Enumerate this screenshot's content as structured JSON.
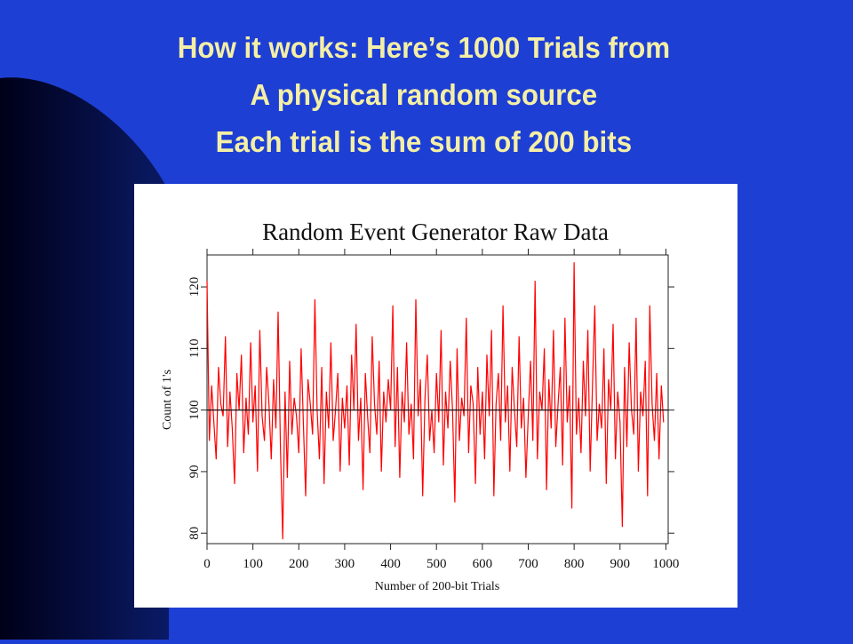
{
  "slide_title": [
    "How it works: Here’s 1000 Trials from",
    "A physical random source",
    "Each trial is the sum of 200 bits"
  ],
  "chart_data": {
    "type": "line",
    "title": "Random Event Generator Raw Data",
    "x_label": "Number of 200-bit Trials",
    "y_label": "Count of 1's",
    "xlim": [
      0,
      1005
    ],
    "ylim": [
      78.3,
      125.2
    ],
    "xticks": [
      0,
      100,
      200,
      300,
      400,
      500,
      600,
      700,
      800,
      900,
      1000
    ],
    "yticks": [
      80,
      90,
      100,
      110,
      120
    ],
    "reference_line": 100,
    "series": [
      {
        "color": "#ff0000",
        "x": [
          0,
          5,
          10,
          15,
          20,
          25,
          30,
          35,
          40,
          45,
          50,
          55,
          60,
          65,
          70,
          75,
          80,
          85,
          90,
          95,
          100,
          105,
          110,
          115,
          120,
          125,
          130,
          135,
          140,
          145,
          150,
          155,
          160,
          165,
          170,
          175,
          180,
          185,
          190,
          195,
          200,
          205,
          210,
          215,
          220,
          225,
          230,
          235,
          240,
          245,
          250,
          255,
          260,
          265,
          270,
          275,
          280,
          285,
          290,
          295,
          300,
          305,
          310,
          315,
          320,
          325,
          330,
          335,
          340,
          345,
          350,
          355,
          360,
          365,
          370,
          375,
          380,
          385,
          390,
          395,
          400,
          405,
          410,
          415,
          420,
          425,
          430,
          435,
          440,
          445,
          450,
          455,
          460,
          465,
          470,
          475,
          480,
          485,
          490,
          495,
          500,
          505,
          510,
          515,
          520,
          525,
          530,
          535,
          540,
          545,
          550,
          555,
          560,
          565,
          570,
          575,
          580,
          585,
          590,
          595,
          600,
          605,
          610,
          615,
          620,
          625,
          630,
          635,
          640,
          645,
          650,
          655,
          660,
          665,
          670,
          675,
          680,
          685,
          690,
          695,
          700,
          705,
          710,
          715,
          720,
          725,
          730,
          735,
          740,
          745,
          750,
          755,
          760,
          765,
          770,
          775,
          780,
          785,
          790,
          795,
          800,
          805,
          810,
          815,
          820,
          825,
          830,
          835,
          840,
          845,
          850,
          855,
          860,
          865,
          870,
          875,
          880,
          885,
          890,
          895,
          900,
          905,
          910,
          915,
          920,
          925,
          930,
          935,
          940,
          945,
          950,
          955,
          960,
          965,
          970,
          975,
          980,
          985,
          990,
          995
        ],
        "values": [
          121,
          95,
          104,
          98,
          92,
          107,
          101,
          99,
          112,
          94,
          103,
          97,
          88,
          106,
          100,
          109,
          93,
          102,
          96,
          111,
          98,
          104,
          90,
          113,
          99,
          95,
          107,
          101,
          92,
          105,
          97,
          116,
          94,
          79,
          103,
          89,
          108,
          96,
          102,
          99,
          93,
          110,
          98,
          86,
          105,
          101,
          96,
          118,
          100,
          92,
          107,
          88,
          103,
          97,
          111,
          95,
          100,
          106,
          90,
          102,
          97,
          104,
          91,
          109,
          100,
          114,
          95,
          102,
          87,
          106,
          99,
          93,
          112,
          101,
          96,
          108,
          90,
          103,
          98,
          105,
          100,
          117,
          94,
          107,
          89,
          103,
          98,
          111,
          96,
          101,
          92,
          118,
          99,
          105,
          86,
          102,
          109,
          95,
          100,
          93,
          106,
          98,
          113,
          91,
          103,
          97,
          108,
          100,
          85,
          110,
          95,
          102,
          99,
          115,
          93,
          104,
          101,
          88,
          107,
          96,
          103,
          92,
          109,
          99,
          113,
          86,
          101,
          106,
          95,
          117,
          98,
          104,
          90,
          107,
          100,
          94,
          112,
          97,
          102,
          89,
          99,
          108,
          95,
          121,
          92,
          103,
          100,
          110,
          87,
          105,
          97,
          113,
          94,
          101,
          107,
          91,
          115,
          98,
          104,
          84,
          124,
          96,
          102,
          93,
          108,
          99,
          113,
          90,
          104,
          117,
          95,
          101,
          97,
          110,
          88,
          105,
          100,
          114,
          92,
          103,
          98,
          81,
          107,
          94,
          111,
          100,
          96,
          115,
          90,
          103,
          99,
          108,
          86,
          117,
          101,
          95,
          106,
          92,
          104,
          98
        ]
      }
    ]
  }
}
